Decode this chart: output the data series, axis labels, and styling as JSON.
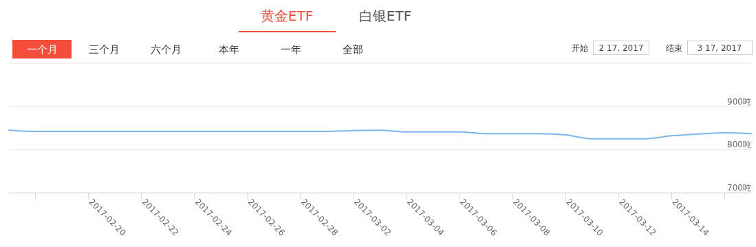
{
  "chart_data": {
    "type": "line",
    "annotations": [
      "黄金ETF",
      "白银ETF",
      "一个月",
      "三个月",
      "六个月",
      "本年",
      "一年",
      "全部",
      "开始",
      "2 17, 2017",
      "结束",
      "3 17, 2017"
    ],
    "x": [
      "2017-02-17",
      "2017-02-18",
      "2017-02-19",
      "2017-02-20",
      "2017-02-21",
      "2017-02-22",
      "2017-02-23",
      "2017-02-24",
      "2017-02-25",
      "2017-02-26",
      "2017-02-27",
      "2017-02-28",
      "2017-03-01",
      "2017-03-02",
      "2017-03-03",
      "2017-03-04",
      "2017-03-05",
      "2017-03-06",
      "2017-03-07",
      "2017-03-08",
      "2017-03-09",
      "2017-03-10",
      "2017-03-11",
      "2017-03-12",
      "2017-03-13",
      "2017-03-14",
      "2017-03-15",
      "2017-03-16",
      "2017-03-17"
    ],
    "series": [
      {
        "color": "#7cb5ec",
        "values": [
          845,
          842,
          842,
          842,
          842,
          842,
          842,
          842,
          842,
          842,
          842,
          842,
          842,
          844,
          845,
          841,
          841,
          841,
          837,
          837,
          837,
          834,
          825,
          825,
          825,
          832,
          836,
          839,
          837
        ]
      }
    ],
    "xlim": [
      "2017-02-17",
      "2017-03-17"
    ],
    "xticks": [
      {
        "value": "2017-02-18",
        "label": null
      },
      "2017-02-20",
      "2017-02-22",
      "2017-02-24",
      "2017-02-26",
      "2017-02-28",
      "2017-03-02",
      "2017-03-04",
      "2017-03-06",
      "2017-03-08",
      "2017-03-10",
      "2017-03-12",
      "2017-03-14",
      {
        "value": "2017-03-16",
        "label": null
      }
    ],
    "ylim": [
      700,
      1000
    ],
    "yticks": [
      {
        "value": 700,
        "label": "700吨"
      },
      {
        "value": 800,
        "label": "800吨"
      },
      {
        "value": 900,
        "label": "900吨"
      },
      {
        "value": 1000,
        "label": null
      }
    ],
    "grid": "y",
    "marker": "none",
    "line_style": "solid"
  }
}
